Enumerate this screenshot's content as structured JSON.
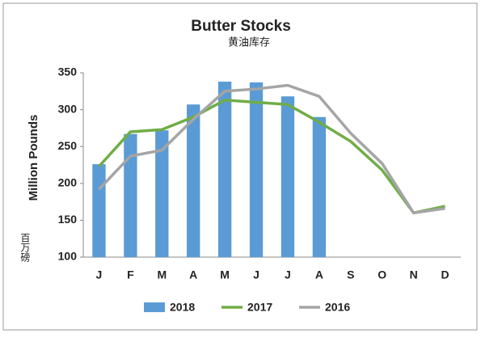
{
  "chart_data": {
    "type": "bar_line",
    "title": "Butter Stocks",
    "subtitle": "黄油库存",
    "y_label": "Million Pounds",
    "annotation": "百万磅",
    "categories": [
      "J",
      "F",
      "M",
      "A",
      "M",
      "J",
      "J",
      "A",
      "S",
      "O",
      "N",
      "D"
    ],
    "ylim": [
      100,
      350
    ],
    "yticks": [
      100,
      150,
      200,
      250,
      300,
      350
    ],
    "series": [
      {
        "name": "2018",
        "type": "bar",
        "color": "#5b9bd5",
        "values": [
          226,
          267,
          272,
          307,
          338,
          337,
          318,
          290,
          null,
          null,
          null,
          null
        ]
      },
      {
        "name": "2017",
        "type": "line",
        "color": "#70ad47",
        "values": [
          223,
          270,
          273,
          290,
          313,
          310,
          307,
          283,
          257,
          218,
          160,
          169
        ]
      },
      {
        "name": "2016",
        "type": "line",
        "color": "#a5a5a5",
        "values": [
          192,
          237,
          245,
          287,
          325,
          328,
          333,
          318,
          268,
          227,
          160,
          166
        ]
      }
    ]
  }
}
